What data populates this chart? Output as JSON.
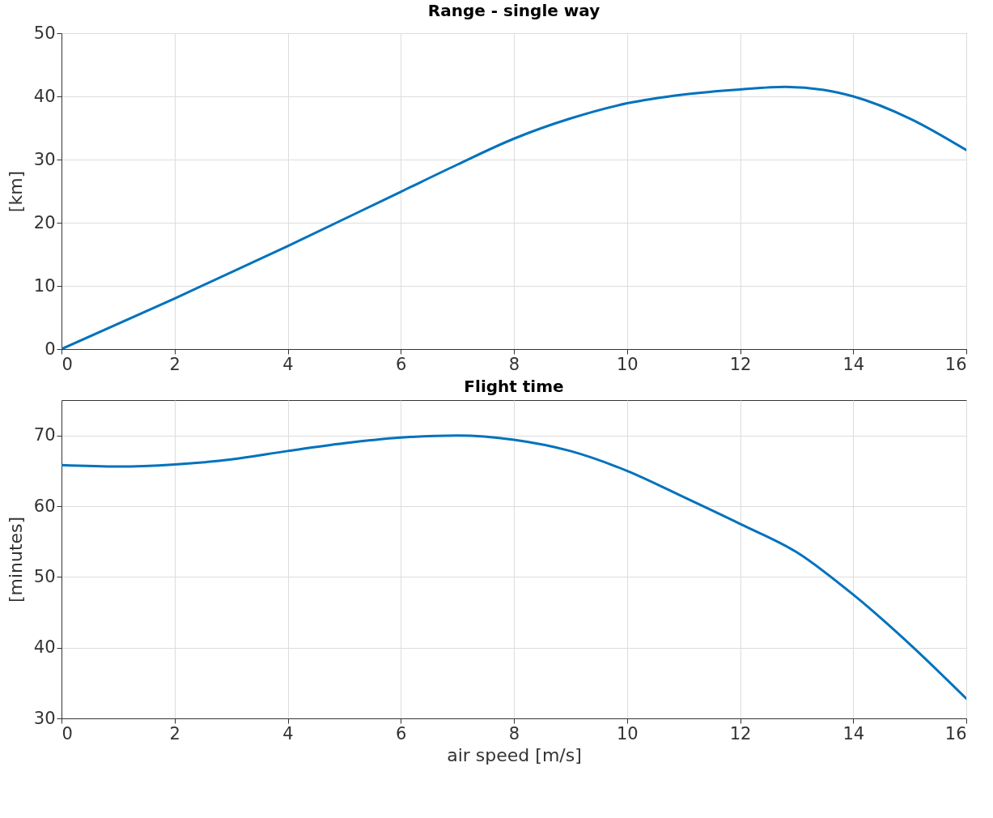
{
  "chart_data": [
    {
      "type": "line",
      "title": "Range - single way",
      "ylabel": "[km]",
      "series": [
        {
          "color": "#0072bd",
          "x": [
            0,
            2,
            4,
            6,
            7,
            8,
            9,
            10,
            11,
            12,
            12.8,
            13.5,
            14,
            15,
            16
          ],
          "values": [
            0,
            8,
            16.3,
            24.9,
            29.2,
            33.3,
            36.5,
            38.9,
            40.3,
            41.1,
            41.5,
            41,
            40,
            36.5,
            31.5
          ]
        }
      ],
      "xlim": [
        0,
        16
      ],
      "xticks": [
        0,
        2,
        4,
        6,
        8,
        10,
        12,
        14,
        16
      ],
      "ylim": [
        0,
        50
      ],
      "yticks": [
        0,
        10,
        20,
        30,
        40,
        50
      ],
      "grid": true
    },
    {
      "type": "line",
      "title": "Flight time",
      "xlabel": "air speed [m/s]",
      "ylabel": "[minutes]",
      "series": [
        {
          "color": "#0072bd",
          "x": [
            0,
            1,
            2,
            3,
            4,
            5,
            6,
            7,
            8,
            9,
            10,
            11,
            12,
            13,
            14,
            15,
            16
          ],
          "values": [
            65.8,
            65.6,
            65.9,
            66.6,
            67.8,
            68.9,
            69.7,
            70,
            69.4,
            67.8,
            65,
            61.3,
            57.5,
            53.5,
            47.5,
            40.5,
            32.8
          ]
        }
      ],
      "xlim": [
        0,
        16
      ],
      "xticks": [
        0,
        2,
        4,
        6,
        8,
        10,
        12,
        14,
        16
      ],
      "ylim": [
        30,
        75
      ],
      "yticks": [
        30,
        40,
        50,
        60,
        70
      ],
      "grid": true
    }
  ]
}
